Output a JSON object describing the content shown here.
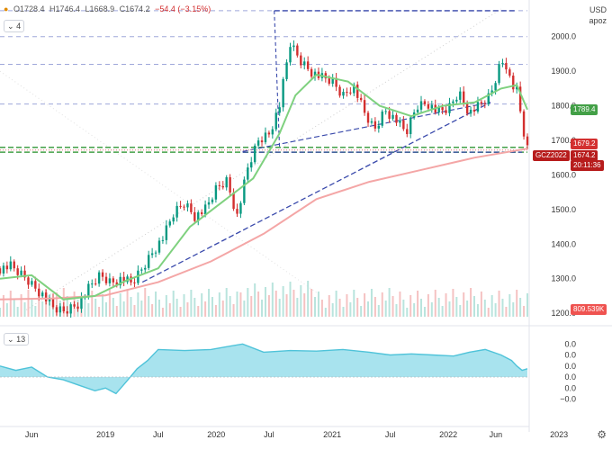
{
  "header": {
    "open": "O1728.4",
    "high": "H1746.4",
    "low": "L1668.9",
    "close": "C1674.2",
    "change": "−54.4 (−3.15%)"
  },
  "main_pane": {
    "indicator_badge": "4",
    "currency": "USD",
    "scale_mode": "apoz"
  },
  "sub_pane": {
    "indicator_badge": "13"
  },
  "tags": {
    "ma_fast": {
      "value": "1789.4",
      "color": "#43a047"
    },
    "ref_level": {
      "value": "1679.2",
      "color": "#d32f2f"
    },
    "price": {
      "value": "1674.2",
      "color": "#b71c1c"
    },
    "symbol": {
      "value": "GCZ2022",
      "color": "#b71c1c"
    },
    "countdown": {
      "value": "20:11:36",
      "color": "#b71c1c"
    },
    "volume": {
      "value": "809.539K",
      "color": "#ef5350"
    }
  },
  "colors": {
    "up": "#089981",
    "down": "#d32f2f",
    "ma_fast": "#7fd17f",
    "ma_slow": "#f4a6a6",
    "trend": "#3949ab",
    "support": "#43a047",
    "osc_fill": "#a8e3ee",
    "osc_line": "#4fc3d9"
  },
  "chart_data": [
    {
      "type": "candlestick",
      "title": "",
      "ylim": [
        1190,
        2080
      ],
      "y_ticks": [
        "2000.0",
        "1900.0",
        "1800.0",
        "1700.0",
        "1600.0",
        "1500.0",
        "1400.0",
        "1300.0",
        "1200.0"
      ],
      "x_ticks": [
        "Jun",
        "2019",
        "Jul",
        "2020",
        "Jul",
        "2021",
        "Jul",
        "2022",
        "Jun",
        "2023"
      ],
      "close_path": [
        [
          0.0,
          1330
        ],
        [
          0.02,
          1335
        ],
        [
          0.05,
          1300
        ],
        [
          0.08,
          1255
        ],
        [
          0.1,
          1215
        ],
        [
          0.12,
          1205
        ],
        [
          0.15,
          1230
        ],
        [
          0.17,
          1275
        ],
        [
          0.19,
          1310
        ],
        [
          0.21,
          1290
        ],
        [
          0.23,
          1300
        ],
        [
          0.25,
          1285
        ],
        [
          0.27,
          1330
        ],
        [
          0.29,
          1380
        ],
        [
          0.31,
          1420
        ],
        [
          0.33,
          1490
        ],
        [
          0.35,
          1520
        ],
        [
          0.37,
          1480
        ],
        [
          0.39,
          1500
        ],
        [
          0.41,
          1560
        ],
        [
          0.43,
          1585
        ],
        [
          0.45,
          1480
        ],
        [
          0.47,
          1620
        ],
        [
          0.49,
          1700
        ],
        [
          0.51,
          1720
        ],
        [
          0.53,
          1800
        ],
        [
          0.55,
          1980
        ],
        [
          0.57,
          1930
        ],
        [
          0.59,
          1900
        ],
        [
          0.61,
          1880
        ],
        [
          0.63,
          1870
        ],
        [
          0.65,
          1830
        ],
        [
          0.67,
          1860
        ],
        [
          0.69,
          1780
        ],
        [
          0.71,
          1730
        ],
        [
          0.73,
          1790
        ],
        [
          0.75,
          1760
        ],
        [
          0.77,
          1720
        ],
        [
          0.79,
          1800
        ],
        [
          0.81,
          1810
        ],
        [
          0.83,
          1780
        ],
        [
          0.85,
          1790
        ],
        [
          0.87,
          1840
        ],
        [
          0.89,
          1780
        ],
        [
          0.91,
          1800
        ],
        [
          0.93,
          1830
        ],
        [
          0.95,
          1930
        ],
        [
          0.96,
          1920
        ],
        [
          0.97,
          1860
        ],
        [
          0.98,
          1840
        ],
        [
          0.985,
          1800
        ],
        [
          0.99,
          1740
        ],
        [
          0.995,
          1710
        ],
        [
          1.0,
          1674
        ]
      ],
      "ma_fast_path": [
        [
          0.0,
          1300
        ],
        [
          0.06,
          1310
        ],
        [
          0.12,
          1240
        ],
        [
          0.18,
          1250
        ],
        [
          0.24,
          1295
        ],
        [
          0.3,
          1330
        ],
        [
          0.36,
          1450
        ],
        [
          0.42,
          1520
        ],
        [
          0.48,
          1590
        ],
        [
          0.53,
          1720
        ],
        [
          0.56,
          1830
        ],
        [
          0.6,
          1890
        ],
        [
          0.66,
          1870
        ],
        [
          0.72,
          1800
        ],
        [
          0.78,
          1770
        ],
        [
          0.84,
          1800
        ],
        [
          0.9,
          1810
        ],
        [
          0.95,
          1850
        ],
        [
          0.98,
          1860
        ],
        [
          1.0,
          1789
        ]
      ],
      "ma_slow_path": [
        [
          0.0,
          1240
        ],
        [
          0.1,
          1243
        ],
        [
          0.2,
          1252
        ],
        [
          0.3,
          1290
        ],
        [
          0.4,
          1350
        ],
        [
          0.5,
          1430
        ],
        [
          0.6,
          1530
        ],
        [
          0.7,
          1580
        ],
        [
          0.8,
          1615
        ],
        [
          0.9,
          1650
        ],
        [
          1.0,
          1676
        ]
      ],
      "levels": [
        {
          "value": 2075,
          "style": "purple-dash"
        },
        {
          "value": 2000,
          "style": "purple-dash"
        },
        {
          "value": 1920,
          "style": "purple-dash"
        },
        {
          "value": 1805,
          "style": "purple-dash"
        },
        {
          "value": 1680,
          "style": "green-dash"
        },
        {
          "value": 1666,
          "style": "green-dash"
        }
      ],
      "trend_channel": {
        "top": 2075,
        "bottom": 1666,
        "rising_from": 1290,
        "rising_to": 1810
      },
      "last_price": 1674.2,
      "ma_fast_last": 1789.4,
      "volume_last": "809.539K"
    },
    {
      "type": "area",
      "title": "",
      "ylim": [
        -0.08,
        0.08
      ],
      "y_ticks": [
        "0.0",
        "0.0",
        "0.0",
        "0.0",
        "0.0",
        "−0.0"
      ],
      "series": [
        {
          "values": [
            [
              0.0,
              0.02
            ],
            [
              0.03,
              0.012
            ],
            [
              0.06,
              0.018
            ],
            [
              0.09,
              0.0
            ],
            [
              0.12,
              -0.005
            ],
            [
              0.15,
              -0.015
            ],
            [
              0.18,
              -0.025
            ],
            [
              0.2,
              -0.02
            ],
            [
              0.22,
              -0.03
            ],
            [
              0.24,
              -0.008
            ],
            [
              0.26,
              0.015
            ],
            [
              0.28,
              0.03
            ],
            [
              0.3,
              0.05
            ],
            [
              0.35,
              0.048
            ],
            [
              0.4,
              0.05
            ],
            [
              0.43,
              0.055
            ],
            [
              0.46,
              0.06
            ],
            [
              0.5,
              0.045
            ],
            [
              0.55,
              0.048
            ],
            [
              0.6,
              0.047
            ],
            [
              0.65,
              0.05
            ],
            [
              0.7,
              0.045
            ],
            [
              0.74,
              0.04
            ],
            [
              0.78,
              0.042
            ],
            [
              0.82,
              0.04
            ],
            [
              0.86,
              0.038
            ],
            [
              0.89,
              0.045
            ],
            [
              0.92,
              0.05
            ],
            [
              0.95,
              0.04
            ],
            [
              0.97,
              0.03
            ],
            [
              0.98,
              0.02
            ],
            [
              0.99,
              0.012
            ],
            [
              1.0,
              0.015
            ]
          ]
        }
      ]
    }
  ]
}
